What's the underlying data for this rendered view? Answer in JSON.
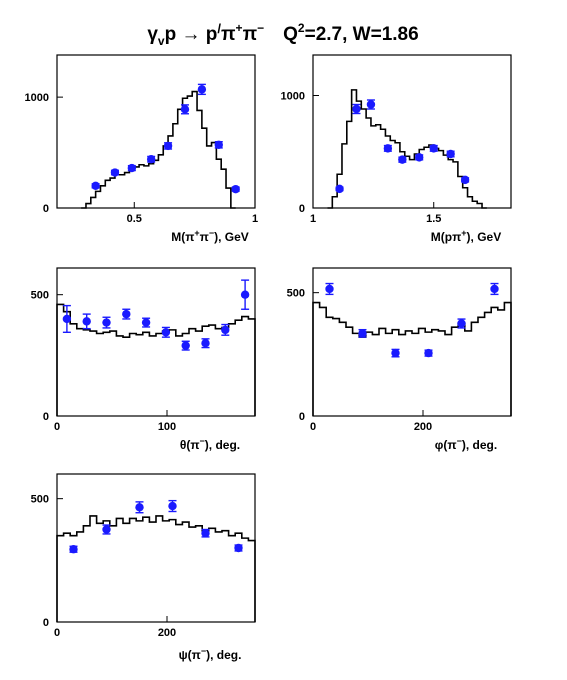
{
  "title": {
    "reaction": "γ<sub>v</sub>p → p′π⁺π⁻",
    "kinematics": "Q²=2.7, W=1.86",
    "parts": [
      "γ",
      "v",
      "p → p",
      "/",
      "π",
      "+",
      "π",
      "−",
      "Q",
      "2",
      "=2.7, W=1.86"
    ]
  },
  "colors": {
    "data_points": "#1a1aff",
    "histogram": "#000000",
    "frame": "#000000"
  },
  "chart_data": [
    {
      "id": "m_pipi",
      "type": "scatter",
      "xlabel_parts": [
        "M(π",
        "+",
        "π",
        "−",
        "), GeV"
      ],
      "xlim": [
        0.18,
        1.0
      ],
      "ylim": [
        0,
        1380
      ],
      "xticks": [
        {
          "v": 0.5,
          "label": "0.5"
        },
        {
          "v": 1.0,
          "label": "1"
        }
      ],
      "yticks": [
        {
          "v": 0,
          "label": "0"
        },
        {
          "v": 1000,
          "label": "1000"
        }
      ],
      "histogram": {
        "edges": [
          0.28,
          0.3,
          0.32,
          0.34,
          0.36,
          0.38,
          0.4,
          0.42,
          0.44,
          0.46,
          0.48,
          0.5,
          0.52,
          0.54,
          0.56,
          0.58,
          0.6,
          0.62,
          0.64,
          0.66,
          0.68,
          0.7,
          0.72,
          0.74,
          0.76,
          0.78,
          0.8,
          0.82,
          0.84,
          0.86,
          0.88,
          0.9,
          0.92
        ],
        "values": [
          0,
          40,
          95,
          150,
          200,
          250,
          270,
          300,
          300,
          320,
          340,
          370,
          390,
          380,
          400,
          430,
          480,
          560,
          650,
          760,
          890,
          990,
          1010,
          1050,
          880,
          720,
          560,
          590,
          440,
          350,
          180,
          0
        ]
      },
      "points": {
        "x": [
          0.34,
          0.42,
          0.49,
          0.57,
          0.64,
          0.71,
          0.78,
          0.85,
          0.92
        ],
        "y": [
          200,
          320,
          360,
          440,
          560,
          890,
          1070,
          570,
          170
        ],
        "yerr": [
          18,
          20,
          22,
          25,
          28,
          40,
          45,
          28,
          18
        ]
      }
    },
    {
      "id": "m_ppip",
      "type": "scatter",
      "xlabel_parts": [
        "M(pπ",
        "+",
        "), GeV"
      ],
      "xlim": [
        1.0,
        1.82
      ],
      "ylim": [
        0,
        1360
      ],
      "xticks": [
        {
          "v": 1.0,
          "label": "1"
        },
        {
          "v": 1.5,
          "label": "1.5"
        }
      ],
      "yticks": [
        {
          "v": 0,
          "label": "0"
        },
        {
          "v": 1000,
          "label": "1000"
        }
      ],
      "histogram": {
        "edges": [
          1.06,
          1.08,
          1.1,
          1.12,
          1.14,
          1.16,
          1.18,
          1.2,
          1.22,
          1.24,
          1.26,
          1.28,
          1.3,
          1.32,
          1.34,
          1.36,
          1.38,
          1.4,
          1.42,
          1.44,
          1.46,
          1.48,
          1.5,
          1.52,
          1.54,
          1.56,
          1.58,
          1.6,
          1.62,
          1.64,
          1.66,
          1.68,
          1.7,
          1.72
        ],
        "values": [
          0,
          100,
          300,
          570,
          770,
          1050,
          950,
          880,
          800,
          730,
          740,
          700,
          640,
          600,
          580,
          500,
          460,
          430,
          480,
          520,
          540,
          560,
          530,
          510,
          470,
          430,
          410,
          280,
          180,
          100,
          60,
          40,
          0
        ]
      },
      "points": {
        "x": [
          1.11,
          1.18,
          1.24,
          1.31,
          1.37,
          1.44,
          1.5,
          1.57,
          1.63
        ],
        "y": [
          170,
          880,
          920,
          530,
          430,
          450,
          530,
          480,
          250
        ],
        "yerr": [
          15,
          40,
          40,
          25,
          22,
          22,
          25,
          25,
          18
        ]
      }
    },
    {
      "id": "theta_pim",
      "type": "scatter",
      "xlabel_parts": [
        "θ(π",
        "−",
        "), deg."
      ],
      "xlim": [
        0,
        180
      ],
      "ylim": [
        0,
        610
      ],
      "xticks": [
        {
          "v": 0,
          "label": "0"
        },
        {
          "v": 100,
          "label": "100"
        }
      ],
      "yticks": [
        {
          "v": 0,
          "label": "0"
        },
        {
          "v": 500,
          "label": "500"
        }
      ],
      "histogram": {
        "edges": [
          0,
          6,
          12,
          18,
          24,
          30,
          36,
          42,
          48,
          54,
          60,
          66,
          72,
          78,
          84,
          90,
          96,
          102,
          108,
          114,
          120,
          126,
          132,
          138,
          144,
          150,
          156,
          162,
          168,
          174,
          180
        ],
        "values": [
          460,
          430,
          380,
          360,
          355,
          350,
          340,
          345,
          350,
          330,
          325,
          340,
          335,
          345,
          330,
          340,
          350,
          355,
          330,
          340,
          360,
          350,
          370,
          375,
          360,
          365,
          380,
          395,
          410,
          400
        ]
      },
      "points": {
        "x": [
          9,
          27,
          45,
          63,
          81,
          99,
          117,
          135,
          153,
          171
        ],
        "y": [
          400,
          390,
          385,
          420,
          385,
          345,
          290,
          300,
          355,
          500
        ],
        "yerr": [
          55,
          30,
          22,
          20,
          18,
          20,
          18,
          18,
          22,
          60
        ]
      }
    },
    {
      "id": "phi_pim",
      "type": "scatter",
      "xlabel_parts": [
        "φ(π",
        "−",
        "), deg."
      ],
      "xlim": [
        0,
        360
      ],
      "ylim": [
        0,
        600
      ],
      "xticks": [
        {
          "v": 0,
          "label": "0"
        },
        {
          "v": 200,
          "label": "200"
        }
      ],
      "yticks": [
        {
          "v": 0,
          "label": "0"
        },
        {
          "v": 500,
          "label": "500"
        }
      ],
      "histogram": {
        "edges": [
          0,
          12,
          24,
          36,
          48,
          60,
          72,
          84,
          96,
          108,
          120,
          132,
          144,
          156,
          168,
          180,
          192,
          204,
          216,
          228,
          240,
          252,
          264,
          276,
          288,
          300,
          312,
          324,
          336,
          348,
          360
        ],
        "values": [
          460,
          440,
          400,
          395,
          380,
          360,
          335,
          320,
          340,
          330,
          355,
          335,
          350,
          330,
          345,
          335,
          355,
          340,
          350,
          345,
          330,
          360,
          375,
          345,
          380,
          400,
          420,
          440,
          430,
          460
        ]
      },
      "points": {
        "x": [
          30,
          90,
          150,
          210,
          270,
          330
        ],
        "y": [
          515,
          335,
          255,
          255,
          375,
          515
        ],
        "yerr": [
          22,
          15,
          15,
          12,
          18,
          22
        ]
      }
    },
    {
      "id": "psi_pim",
      "type": "scatter",
      "xlabel_parts": [
        "ψ(π",
        "−",
        "), deg."
      ],
      "xlim": [
        0,
        360
      ],
      "ylim": [
        0,
        600
      ],
      "xticks": [
        {
          "v": 0,
          "label": "0"
        },
        {
          "v": 200,
          "label": "200"
        }
      ],
      "yticks": [
        {
          "v": 0,
          "label": "0"
        },
        {
          "v": 500,
          "label": "500"
        }
      ],
      "histogram": {
        "edges": [
          0,
          12,
          24,
          36,
          48,
          60,
          72,
          84,
          96,
          108,
          120,
          132,
          144,
          156,
          168,
          180,
          192,
          204,
          216,
          228,
          240,
          252,
          264,
          276,
          288,
          300,
          312,
          324,
          336,
          348,
          360
        ],
        "values": [
          350,
          360,
          350,
          365,
          390,
          430,
          400,
          410,
          390,
          420,
          400,
          420,
          410,
          425,
          405,
          430,
          410,
          415,
          395,
          405,
          385,
          390,
          370,
          380,
          365,
          370,
          350,
          360,
          340,
          330
        ]
      },
      "points": {
        "x": [
          30,
          90,
          150,
          210,
          270,
          330
        ],
        "y": [
          295,
          375,
          465,
          470,
          360,
          300
        ],
        "yerr": [
          12,
          18,
          22,
          22,
          15,
          12
        ]
      }
    }
  ]
}
